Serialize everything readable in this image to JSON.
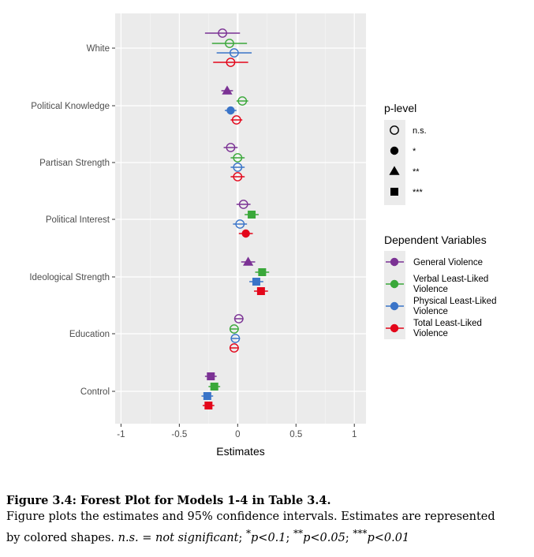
{
  "chart_data": {
    "type": "forest",
    "xlabel": "Estimates",
    "xlim": [
      -1.05,
      1.1
    ],
    "x_ticks": [
      "-1",
      "-0.5",
      "0",
      "0.5",
      "1"
    ],
    "x_tick_values": [
      -1,
      -0.5,
      0,
      0.5,
      1
    ],
    "reference_line": 0,
    "categories": [
      "White",
      "Political Knowledge",
      "Partisan Strength",
      "Political Interest",
      "Ideological Strength",
      "Education",
      "Control"
    ],
    "series": [
      {
        "name": "General Violence",
        "color": "#7b3294",
        "points": [
          {
            "category": "White",
            "estimate": -0.13,
            "low": -0.28,
            "high": 0.02,
            "p": "n.s."
          },
          {
            "category": "Political Knowledge",
            "estimate": -0.09,
            "low": -0.14,
            "high": -0.04,
            "p": "**"
          },
          {
            "category": "Partisan Strength",
            "estimate": -0.06,
            "low": -0.12,
            "high": 0.0,
            "p": "n.s."
          },
          {
            "category": "Political Interest",
            "estimate": 0.05,
            "low": -0.01,
            "high": 0.11,
            "p": "n.s."
          },
          {
            "category": "Ideological Strength",
            "estimate": 0.09,
            "low": 0.03,
            "high": 0.15,
            "p": "**"
          },
          {
            "category": "Education",
            "estimate": 0.01,
            "low": -0.03,
            "high": 0.05,
            "p": "n.s."
          },
          {
            "category": "Control",
            "estimate": -0.23,
            "low": -0.28,
            "high": -0.18,
            "p": "***"
          }
        ]
      },
      {
        "name": "Verbal Least-Liked Violence",
        "color": "#3aa83a",
        "points": [
          {
            "category": "White",
            "estimate": -0.07,
            "low": -0.22,
            "high": 0.08,
            "p": "n.s."
          },
          {
            "category": "Political Knowledge",
            "estimate": 0.04,
            "low": -0.01,
            "high": 0.09,
            "p": "n.s."
          },
          {
            "category": "Partisan Strength",
            "estimate": 0.0,
            "low": -0.06,
            "high": 0.06,
            "p": "n.s."
          },
          {
            "category": "Political Interest",
            "estimate": 0.12,
            "low": 0.06,
            "high": 0.18,
            "p": "***"
          },
          {
            "category": "Ideological Strength",
            "estimate": 0.21,
            "low": 0.15,
            "high": 0.27,
            "p": "***"
          },
          {
            "category": "Education",
            "estimate": -0.03,
            "low": -0.07,
            "high": 0.01,
            "p": "n.s."
          },
          {
            "category": "Control",
            "estimate": -0.2,
            "low": -0.25,
            "high": -0.15,
            "p": "***"
          }
        ]
      },
      {
        "name": "Physical Least-Liked Violence",
        "color": "#3a74c8",
        "points": [
          {
            "category": "White",
            "estimate": -0.03,
            "low": -0.18,
            "high": 0.12,
            "p": "n.s."
          },
          {
            "category": "Political Knowledge",
            "estimate": -0.06,
            "low": -0.11,
            "high": -0.01,
            "p": "*"
          },
          {
            "category": "Partisan Strength",
            "estimate": 0.0,
            "low": -0.06,
            "high": 0.06,
            "p": "n.s."
          },
          {
            "category": "Political Interest",
            "estimate": 0.02,
            "low": -0.04,
            "high": 0.08,
            "p": "n.s."
          },
          {
            "category": "Ideological Strength",
            "estimate": 0.16,
            "low": 0.1,
            "high": 0.22,
            "p": "***"
          },
          {
            "category": "Education",
            "estimate": -0.02,
            "low": -0.06,
            "high": 0.02,
            "p": "n.s."
          },
          {
            "category": "Control",
            "estimate": -0.26,
            "low": -0.31,
            "high": -0.21,
            "p": "***"
          }
        ]
      },
      {
        "name": "Total Least-Liked Violence",
        "color": "#e3061a",
        "points": [
          {
            "category": "White",
            "estimate": -0.06,
            "low": -0.21,
            "high": 0.09,
            "p": "n.s."
          },
          {
            "category": "Political Knowledge",
            "estimate": -0.01,
            "low": -0.06,
            "high": 0.04,
            "p": "n.s."
          },
          {
            "category": "Partisan Strength",
            "estimate": 0.0,
            "low": -0.06,
            "high": 0.06,
            "p": "n.s."
          },
          {
            "category": "Political Interest",
            "estimate": 0.07,
            "low": 0.01,
            "high": 0.13,
            "p": "*"
          },
          {
            "category": "Ideological Strength",
            "estimate": 0.2,
            "low": 0.14,
            "high": 0.26,
            "p": "***"
          },
          {
            "category": "Education",
            "estimate": -0.03,
            "low": -0.07,
            "high": 0.01,
            "p": "n.s."
          },
          {
            "category": "Control",
            "estimate": -0.25,
            "low": -0.3,
            "high": -0.2,
            "p": "***"
          }
        ]
      }
    ],
    "legend_plevel": {
      "title": "p-level",
      "items": [
        {
          "label": "n.s.",
          "shape": "open-circle"
        },
        {
          "label": "*",
          "shape": "filled-circle"
        },
        {
          "label": "**",
          "shape": "triangle"
        },
        {
          "label": "***",
          "shape": "square"
        }
      ]
    },
    "legend_dv": {
      "title": "Dependent Variables",
      "items": [
        {
          "label_lines": [
            "General Violence"
          ],
          "color": "#7b3294"
        },
        {
          "label_lines": [
            "Verbal Least-Liked",
            "Violence"
          ],
          "color": "#3aa83a"
        },
        {
          "label_lines": [
            "Physical Least-Liked",
            "Violence"
          ],
          "color": "#3a74c8"
        },
        {
          "label_lines": [
            "Total Least-Liked",
            "Violence"
          ],
          "color": "#e3061a"
        }
      ]
    },
    "panel_background": "#ebebeb",
    "grid": true,
    "legend_position": "right"
  },
  "caption": {
    "heading": "Figure 3.4: Forest Plot for Models 1-4 in Table 3.4.",
    "line1": "Figure plots the estimates and 95% confidence intervals.  Estimates are represented",
    "line2_prefix": "by colored shapes. ",
    "ns_text": "n.s. = not significant",
    "sep1": "; ",
    "p1_stars": "*",
    "p1_text": "p<0.1",
    "sep2": "; ",
    "p2_stars": "**",
    "p2_text": "p<0.05",
    "sep3": "; ",
    "p3_stars": "***",
    "p3_text": "p<0.01"
  }
}
